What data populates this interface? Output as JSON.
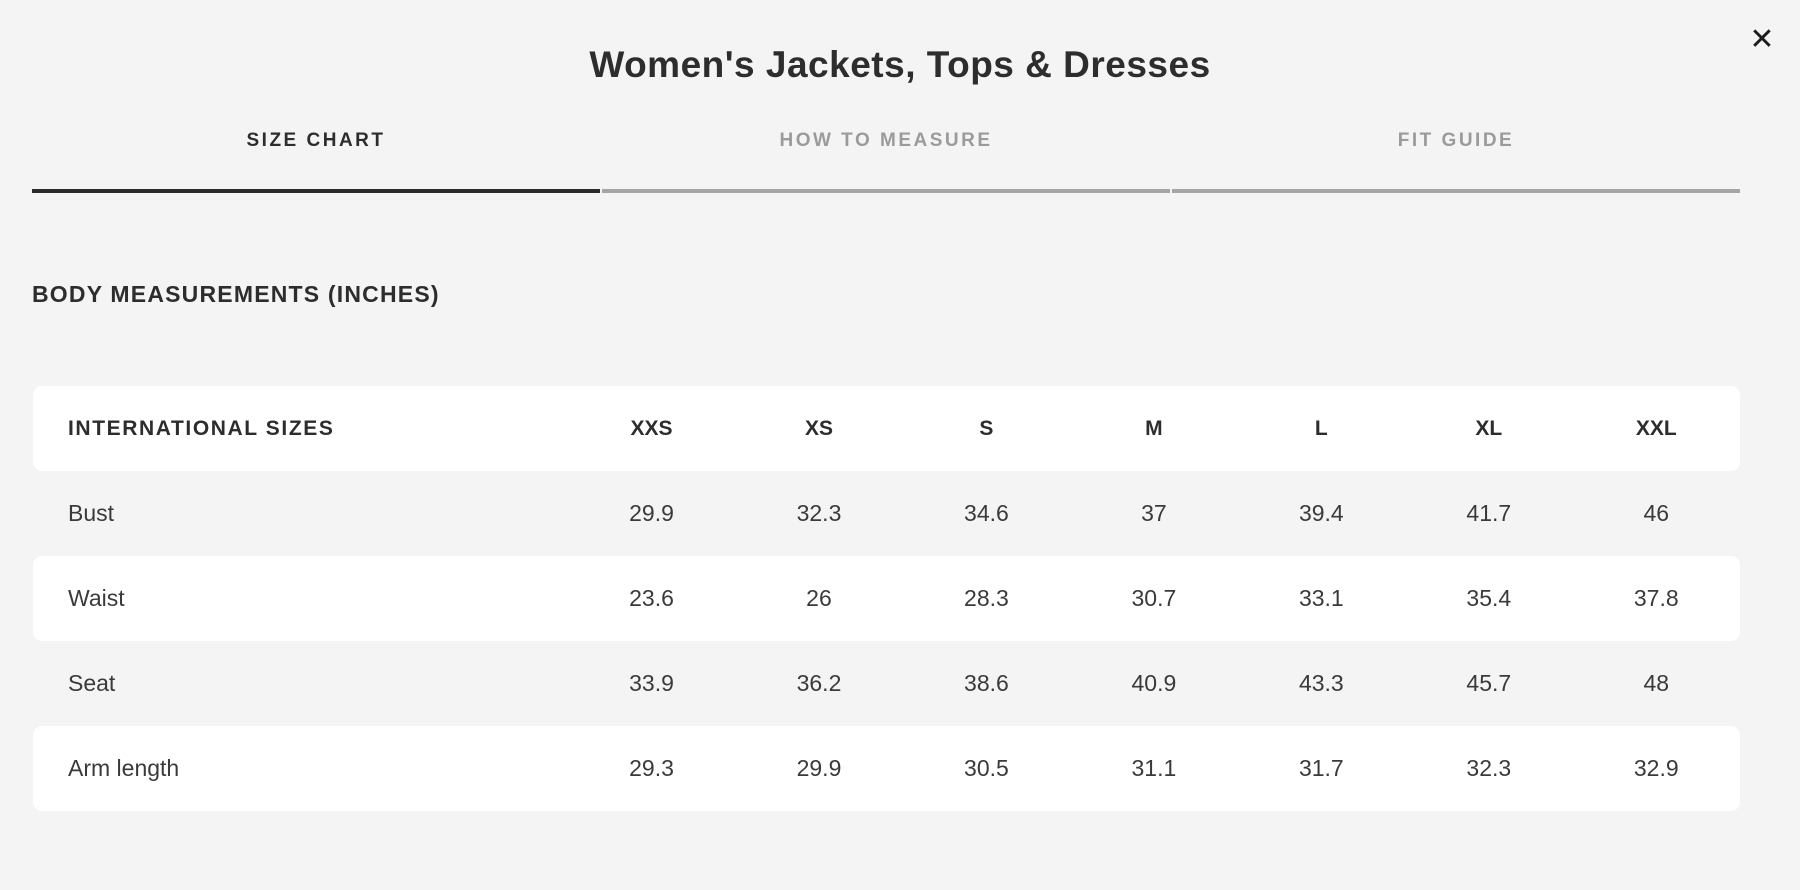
{
  "modal": {
    "title": "Women's Jackets, Tops & Dresses",
    "close_icon": "✕"
  },
  "tabs": [
    {
      "label": "SIZE CHART",
      "active": true
    },
    {
      "label": "HOW TO MEASURE",
      "active": false
    },
    {
      "label": "FIT GUIDE",
      "active": false
    }
  ],
  "section": {
    "heading": "BODY MEASUREMENTS (INCHES)"
  },
  "size_table": {
    "header": {
      "label": "INTERNATIONAL SIZES",
      "sizes": [
        "XXS",
        "XS",
        "S",
        "M",
        "L",
        "XL",
        "XXL"
      ]
    },
    "rows": [
      {
        "label": "Bust",
        "values": [
          "29.9",
          "32.3",
          "34.6",
          "37",
          "39.4",
          "41.7",
          "46"
        ]
      },
      {
        "label": "Waist",
        "values": [
          "23.6",
          "26",
          "28.3",
          "30.7",
          "33.1",
          "35.4",
          "37.8"
        ]
      },
      {
        "label": "Seat",
        "values": [
          "33.9",
          "36.2",
          "38.6",
          "40.9",
          "43.3",
          "45.7",
          "48"
        ]
      },
      {
        "label": "Arm length",
        "values": [
          "29.3",
          "29.9",
          "30.5",
          "31.1",
          "31.7",
          "32.3",
          "32.9"
        ]
      }
    ]
  },
  "colors": {
    "background": "#f4f4f4",
    "row_white": "#ffffff",
    "text_dark": "#2d2d2d",
    "text_body": "#3a3a3a",
    "tab_inactive": "#9b9b9b",
    "underline_active": "#2b2b2b",
    "underline_inactive": "#a5a5a5"
  }
}
